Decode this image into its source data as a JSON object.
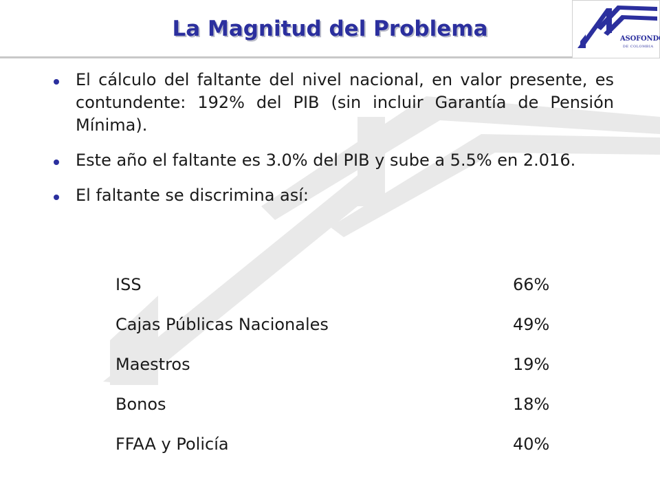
{
  "title": "La Magnitud del Problema",
  "logo": {
    "name": "ASOFONDOS",
    "subtitle": "DE COLOMBIA"
  },
  "bullets": [
    "El cálculo del faltante del nivel nacional, en valor presente, es contundente: 192% del PIB (sin incluir Garantía de Pensión Mínima).",
    "Este año el faltante es 3.0% del PIB y sube a 5.5% en 2.016.",
    "El faltante se discrimina así:"
  ],
  "breakdown": [
    {
      "label": "ISS",
      "value": "66%"
    },
    {
      "label": "Cajas Públicas Nacionales",
      "value": "49%"
    },
    {
      "label": "Maestros",
      "value": "19%"
    },
    {
      "label": "Bonos",
      "value": "18%"
    },
    {
      "label": "FFAA y Policía",
      "value": "40%"
    }
  ],
  "colors": {
    "title": "#2b2f9e",
    "bullet": "#2b2f9e",
    "text": "#1a1a1a",
    "watermark": "#e6e6e6",
    "rule": "#c8c8c8"
  }
}
